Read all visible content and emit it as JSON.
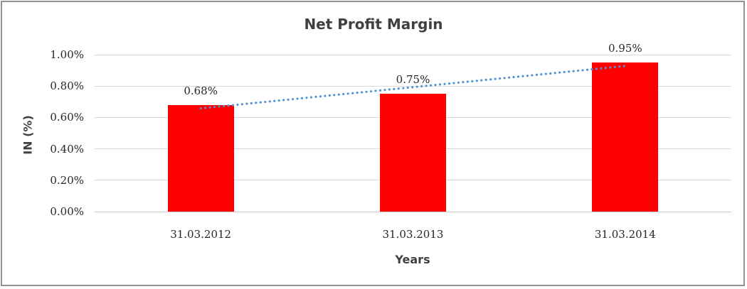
{
  "chart_data": {
    "type": "bar",
    "title": "Net Profit Margin",
    "xlabel": "Years",
    "ylabel": "IN (%)",
    "categories": [
      "31.03.2012",
      "31.03.2013",
      "31.03.2014"
    ],
    "values": [
      0.68,
      0.75,
      0.95
    ],
    "data_labels": [
      "0.68%",
      "0.75%",
      "0.95%"
    ],
    "ylim": [
      0,
      1.0
    ],
    "ytick_step": 0.2,
    "ytick_labels": [
      "0.00%",
      "0.20%",
      "0.40%",
      "0.60%",
      "0.80%",
      "1.00%"
    ],
    "grid": true,
    "legend": "none",
    "bar_color": "#ff0000",
    "gridline_color": "#d9d9d9",
    "frame_border_color": "#919191",
    "text_color": "#262626",
    "heading_color": "#404040",
    "trendline": {
      "type": "linear",
      "style": "dotted",
      "color": "#4f93d2",
      "start_value": 0.658,
      "end_value": 0.928
    }
  }
}
